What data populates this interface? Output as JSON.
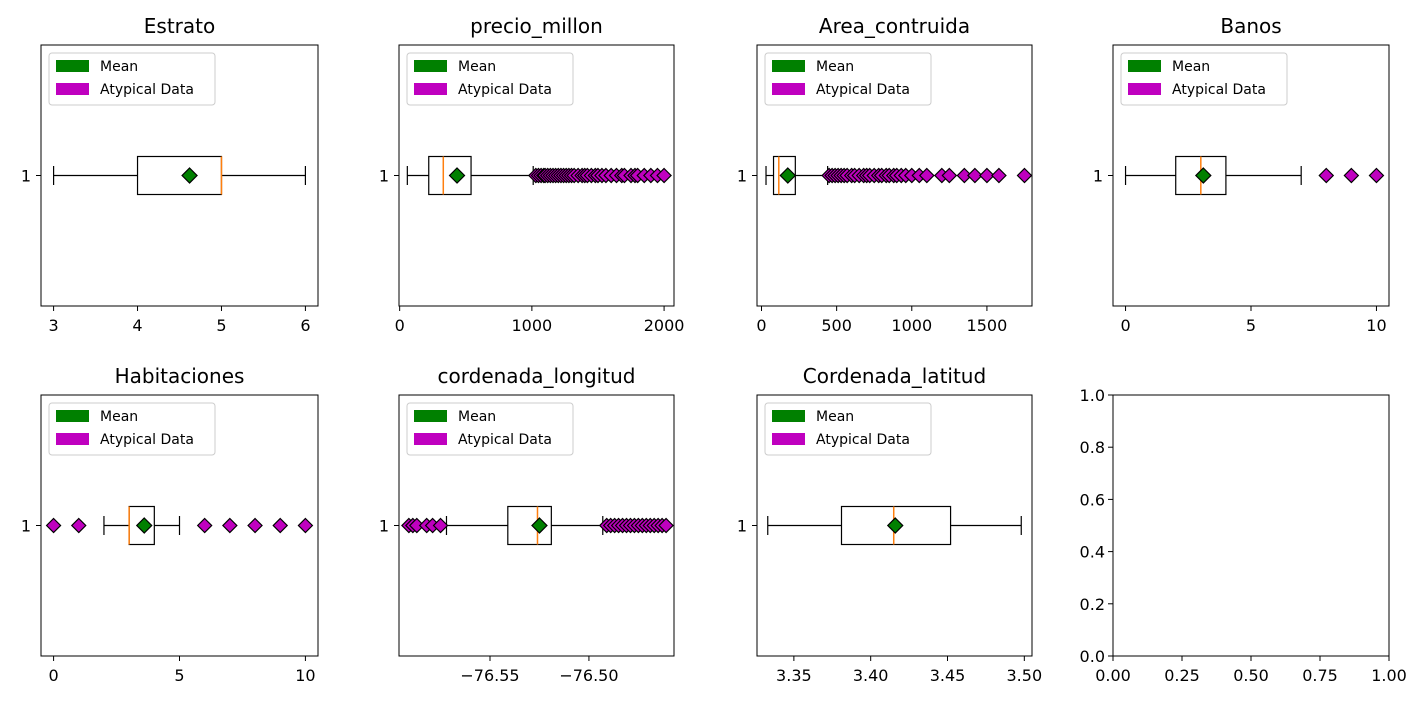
{
  "colors": {
    "mean": "#008000",
    "outlier": "#bf00bf",
    "median": "#ff7f0e",
    "box": "#000000"
  },
  "legend_labels": {
    "mean": "Mean",
    "outlier": "Atypical Data"
  },
  "chart_data": [
    {
      "type": "box",
      "title": "Estrato",
      "category": "1",
      "xlim": [
        2.85,
        6.15
      ],
      "xticks": [
        3,
        4,
        5,
        6
      ],
      "xticklabels": [
        "3",
        "4",
        "5",
        "6"
      ],
      "stats": {
        "whislo": 3,
        "q1": 4,
        "median": 5,
        "q3": 5,
        "whishi": 6,
        "mean": 4.62
      },
      "outliers": [],
      "legend": "top-left"
    },
    {
      "type": "box",
      "title": "precio_millon",
      "category": "1",
      "xlim": [
        -5,
        2075
      ],
      "xticks": [
        0,
        1000,
        2000
      ],
      "xticklabels": [
        "0",
        "1000",
        "2000"
      ],
      "stats": {
        "whislo": 58,
        "q1": 220,
        "median": 330,
        "q3": 540,
        "whishi": 1010,
        "mean": 434
      },
      "outliers": [
        1030,
        1050,
        1070,
        1090,
        1100,
        1120,
        1140,
        1160,
        1180,
        1200,
        1220,
        1240,
        1260,
        1280,
        1300,
        1320,
        1350,
        1380,
        1400,
        1420,
        1450,
        1480,
        1500,
        1530,
        1560,
        1600,
        1640,
        1680,
        1700,
        1750,
        1780,
        1800,
        1850,
        1900,
        1950,
        2000
      ],
      "legend": "top-left"
    },
    {
      "type": "box",
      "title": "Area_contruida",
      "category": "1",
      "xlim": [
        -30,
        1800
      ],
      "xticks": [
        0,
        500,
        1000,
        1500
      ],
      "xticklabels": [
        "0",
        "500",
        "1000",
        "1500"
      ],
      "stats": {
        "whislo": 30,
        "q1": 80,
        "median": 115,
        "q3": 225,
        "whishi": 440,
        "mean": 175
      },
      "outliers": [
        450,
        470,
        490,
        510,
        530,
        550,
        570,
        600,
        620,
        650,
        680,
        700,
        720,
        750,
        780,
        800,
        830,
        850,
        880,
        900,
        930,
        960,
        1000,
        1050,
        1100,
        1200,
        1250,
        1350,
        1420,
        1500,
        1580,
        1750
      ],
      "legend": "top-left"
    },
    {
      "type": "box",
      "title": "Banos",
      "category": "1",
      "xlim": [
        -0.5,
        10.5
      ],
      "xticks": [
        0,
        5,
        10
      ],
      "xticklabels": [
        "0",
        "5",
        "10"
      ],
      "stats": {
        "whislo": 0,
        "q1": 2,
        "median": 3,
        "q3": 4,
        "whishi": 7,
        "mean": 3.1
      },
      "outliers": [
        8,
        9,
        10
      ],
      "legend": "top-left"
    },
    {
      "type": "box",
      "title": "Habitaciones",
      "category": "1",
      "xlim": [
        -0.5,
        10.5
      ],
      "xticks": [
        0,
        5,
        10
      ],
      "xticklabels": [
        "0",
        "5",
        "10"
      ],
      "stats": {
        "whislo": 2,
        "q1": 3,
        "median": 3,
        "q3": 4,
        "whishi": 5,
        "mean": 3.6
      },
      "outliers": [
        0,
        1,
        6,
        7,
        8,
        9,
        10
      ],
      "legend": "top-left"
    },
    {
      "type": "box",
      "title": "cordenada_longitud",
      "category": "1",
      "xlim": [
        -76.596,
        -76.457
      ],
      "xticks": [
        -76.55,
        -76.5
      ],
      "xticklabels": [
        "−76.55",
        "−76.50"
      ],
      "stats": {
        "whislo": -76.572,
        "q1": -76.541,
        "median": -76.526,
        "q3": -76.519,
        "whishi": -76.493,
        "mean": -76.525
      },
      "outliers": [
        -76.591,
        -76.589,
        -76.587,
        -76.582,
        -76.579,
        -76.575,
        -76.491,
        -76.489,
        -76.487,
        -76.485,
        -76.483,
        -76.481,
        -76.479,
        -76.477,
        -76.475,
        -76.473,
        -76.471,
        -76.469,
        -76.467,
        -76.465,
        -76.463,
        -76.461
      ],
      "legend": "top-left"
    },
    {
      "type": "box",
      "title": "Cordenada_latitud",
      "category": "1",
      "xlim": [
        3.326,
        3.505
      ],
      "xticks": [
        3.35,
        3.4,
        3.45,
        3.5
      ],
      "xticklabels": [
        "3.35",
        "3.40",
        "3.45",
        "3.50"
      ],
      "stats": {
        "whislo": 3.333,
        "q1": 3.381,
        "median": 3.415,
        "q3": 3.452,
        "whishi": 3.498,
        "mean": 3.416
      },
      "outliers": [],
      "legend": "top-left"
    },
    {
      "type": "empty",
      "title": "",
      "xlim": [
        0,
        1
      ],
      "ylim": [
        0,
        1
      ],
      "xticks": [
        0,
        0.25,
        0.5,
        0.75,
        1
      ],
      "xticklabels": [
        "0.00",
        "0.25",
        "0.50",
        "0.75",
        "1.00"
      ],
      "yticks": [
        0,
        0.2,
        0.4,
        0.6,
        0.8,
        1
      ],
      "yticklabels": [
        "0.0",
        "0.2",
        "0.4",
        "0.6",
        "0.8",
        "1.0"
      ]
    }
  ]
}
